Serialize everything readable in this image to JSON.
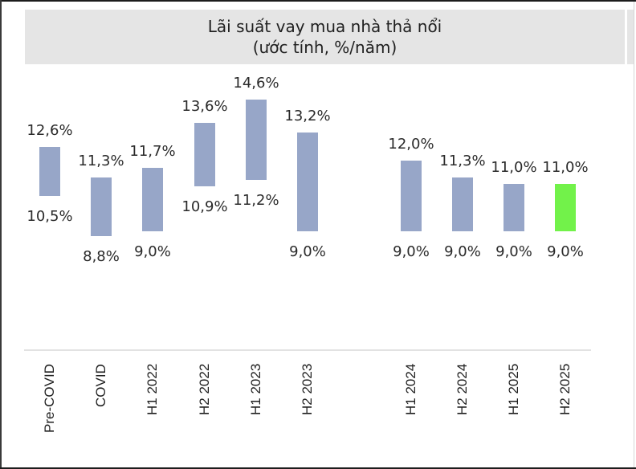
{
  "title": {
    "line1": "Lãi suất vay mua nhà thả nổi",
    "line2": "(ước tính, %/năm)"
  },
  "colors": {
    "bar_default": "#97a6c8",
    "bar_highlight": "#72f24a",
    "title_band": "#e5e5e5"
  },
  "chart_data": {
    "type": "bar",
    "subtype": "floating-range",
    "title": "Lãi suất vay mua nhà thả nổi (ước tính, %/năm)",
    "xlabel": "",
    "ylabel": "%/năm",
    "categories": [
      "Pre-COVID",
      "COVID",
      "H1 2022",
      "H2 2022",
      "H1 2023",
      "H2 2023",
      "H1 2024",
      "H2 2024",
      "H1 2025",
      "H2 2025"
    ],
    "series": [
      {
        "name": "low",
        "values": [
          10.5,
          8.8,
          9.0,
          10.9,
          11.2,
          9.0,
          9.0,
          9.0,
          9.0,
          9.0
        ]
      },
      {
        "name": "high",
        "values": [
          12.6,
          11.3,
          11.7,
          13.6,
          14.6,
          13.2,
          12.0,
          11.3,
          11.0,
          11.0
        ]
      }
    ],
    "highlight_category": "H2 2025",
    "grid": false,
    "legend": "none"
  },
  "bars": [
    {
      "category": "Pre-COVID",
      "low": "10,5%",
      "high": "12,6%"
    },
    {
      "category": "COVID",
      "low": "8,8%",
      "high": "11,3%"
    },
    {
      "category": "H1 2022",
      "low": "9,0%",
      "high": "11,7%"
    },
    {
      "category": "H2 2022",
      "low": "10,9%",
      "high": "13,6%"
    },
    {
      "category": "H1 2023",
      "low": "11,2%",
      "high": "14,6%"
    },
    {
      "category": "H2 2023",
      "low": "9,0%",
      "high": "13,2%"
    },
    {
      "category": "H1 2024",
      "low": "9,0%",
      "high": "12,0%"
    },
    {
      "category": "H2 2024",
      "low": "9,0%",
      "high": "11,3%"
    },
    {
      "category": "H1 2025",
      "low": "9,0%",
      "high": "11,0%"
    },
    {
      "category": "H2 2025",
      "low": "9,0%",
      "high": "11,0%"
    }
  ]
}
